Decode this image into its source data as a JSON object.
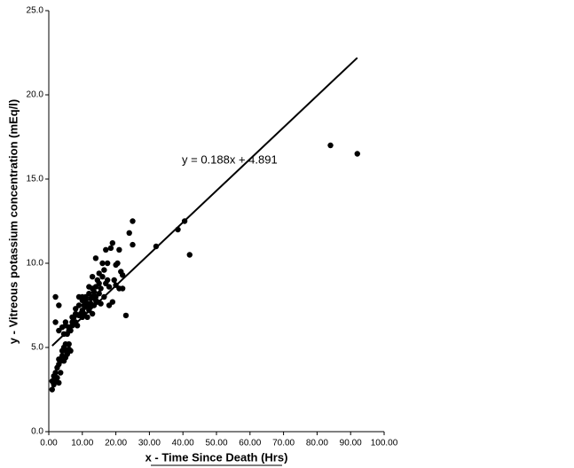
{
  "chart_data": {
    "type": "scatter",
    "xlabel": "x - Time Since Death (Hrs)",
    "ylabel": "y - Vitreous potassium concentration (mEq/l)",
    "annotation": "y = 0.188x + 4.891",
    "color": "#000000",
    "xlim": [
      0,
      100
    ],
    "ylim": [
      0,
      25
    ],
    "xticks": [
      {
        "value": 0,
        "label": "0.00"
      },
      {
        "value": 10,
        "label": "10.00"
      },
      {
        "value": 20,
        "label": "20.00"
      },
      {
        "value": 30,
        "label": "30.00"
      },
      {
        "value": 40,
        "label": "40.00"
      },
      {
        "value": 50,
        "label": "50.00"
      },
      {
        "value": 60,
        "label": "60.00"
      },
      {
        "value": 70,
        "label": "70.00"
      },
      {
        "value": 80,
        "label": "80.00"
      },
      {
        "value": 90,
        "label": "90.00"
      },
      {
        "value": 100,
        "label": "100.00"
      }
    ],
    "yticks": [
      {
        "value": 0,
        "label": "0.0"
      },
      {
        "value": 5,
        "label": "5.0"
      },
      {
        "value": 10,
        "label": "10.0"
      },
      {
        "value": 15,
        "label": "15.0"
      },
      {
        "value": 20,
        "label": "20.0"
      },
      {
        "value": 25,
        "label": "25.0"
      }
    ],
    "trendline": {
      "x": [
        1,
        92
      ],
      "y": [
        5.1,
        22.2
      ]
    },
    "x": [
      1,
      1,
      1.5,
      1.5,
      2,
      2,
      2.5,
      2.5,
      3,
      3,
      3,
      3.5,
      3.5,
      4,
      4,
      4.5,
      4.5,
      5,
      5,
      5,
      5.5,
      5.5,
      6,
      6,
      6,
      6.5,
      6.5,
      4,
      3,
      2,
      3,
      2,
      5,
      5,
      4.5,
      7,
      7,
      7.5,
      8,
      8,
      8.5,
      9,
      9,
      9.5,
      10,
      10,
      10,
      10.5,
      10.5,
      11,
      11,
      11.5,
      11.5,
      12,
      12,
      12,
      12.5,
      12.5,
      13,
      13,
      13,
      13.5,
      13.5,
      14,
      14,
      14,
      14.5,
      14.5,
      15,
      15,
      15,
      15.5,
      15.5,
      16,
      16,
      16.5,
      16.5,
      17,
      17,
      17.5,
      17.5,
      18,
      18,
      18.5,
      19,
      19,
      19.5,
      20,
      20,
      20.5,
      21,
      21,
      21.5,
      22,
      22,
      23,
      24,
      25,
      25,
      32,
      38.5,
      40.5,
      42,
      84,
      92,
      9,
      10,
      11,
      12,
      13,
      14,
      8,
      7,
      6
    ],
    "y": [
      2.5,
      3.0,
      2.8,
      3.3,
      3.0,
      3.5,
      3.2,
      3.8,
      2.9,
      4.0,
      4.3,
      3.5,
      4.2,
      4.5,
      4.8,
      4.2,
      5.0,
      4.4,
      4.8,
      5.2,
      4.6,
      5.8,
      4.9,
      5.2,
      6.2,
      4.8,
      6.0,
      6.2,
      6.0,
      6.5,
      7.5,
      8.0,
      6.3,
      6.5,
      5.8,
      6.3,
      6.5,
      6.8,
      6.5,
      7.0,
      6.3,
      6.9,
      7.5,
      7.0,
      6.8,
      7.2,
      7.8,
      7.0,
      7.5,
      7.4,
      8.0,
      6.8,
      7.6,
      7.2,
      8.2,
      8.6,
      7.6,
      7.9,
      7.0,
      8.0,
      9.2,
      7.5,
      8.3,
      7.8,
      8.6,
      10.3,
      7.7,
      9.0,
      8.2,
      8.8,
      9.4,
      7.6,
      8.5,
      9.2,
      10.0,
      8.0,
      9.6,
      8.8,
      10.8,
      9.0,
      10.0,
      7.5,
      8.6,
      10.9,
      7.7,
      11.2,
      9.0,
      8.7,
      9.9,
      10.0,
      8.5,
      10.8,
      9.5,
      8.5,
      9.3,
      6.9,
      11.8,
      11.1,
      12.5,
      11.0,
      12.0,
      12.5,
      10.5,
      17.0,
      16.5,
      8.0,
      8.0,
      7.8,
      7.4,
      8.5,
      8.0,
      7.3,
      6.8,
      6.0
    ]
  }
}
